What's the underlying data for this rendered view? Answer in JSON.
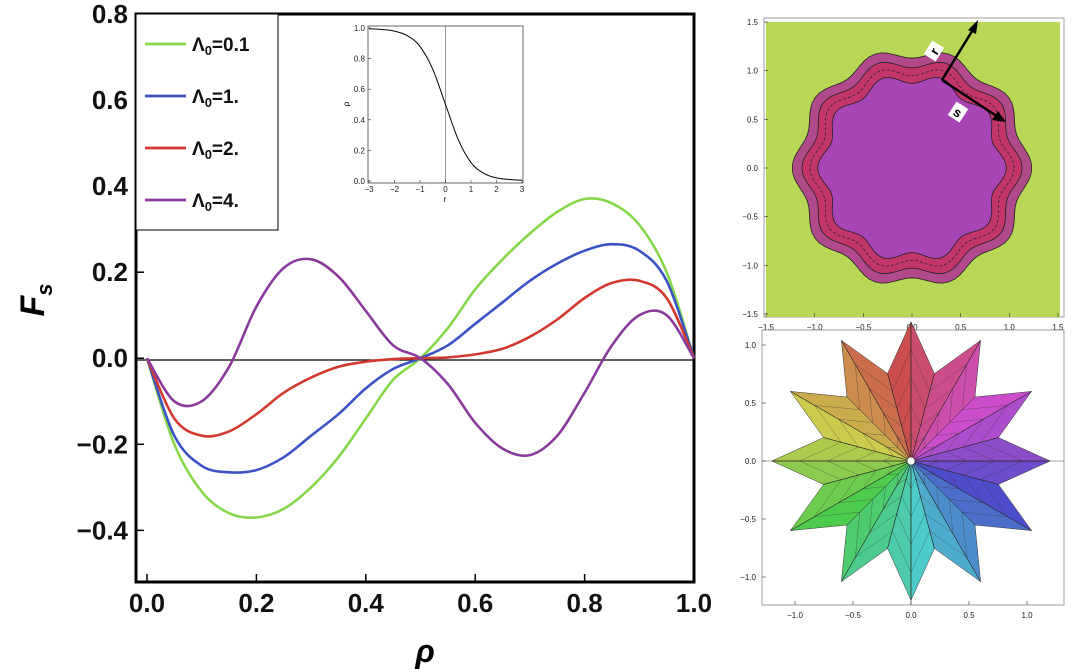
{
  "chart_data": [
    {
      "type": "line",
      "title": "",
      "xlabel": "ρ",
      "ylabel": "F",
      "ylabel_sub": "s",
      "xlim": [
        0.0,
        1.0
      ],
      "ylim": [
        -0.52,
        0.8
      ],
      "x_ticks": [
        "0.0",
        "0.2",
        "0.4",
        "0.6",
        "0.8",
        "1.0"
      ],
      "y_ticks": [
        "0.8",
        "0.6",
        "0.4",
        "0.2",
        "0.0",
        "−0.2",
        "−0.4"
      ],
      "legend_position": "top-left",
      "x": [
        0.0,
        0.05,
        0.1,
        0.15,
        0.2,
        0.25,
        0.3,
        0.35,
        0.4,
        0.45,
        0.5,
        0.55,
        0.6,
        0.65,
        0.7,
        0.75,
        0.8,
        0.85,
        0.9,
        0.95,
        1.0
      ],
      "series": [
        {
          "name": "Λ₀=0.1",
          "label_main": "Λ",
          "label_sub": "0",
          "label_rest": "=0.1",
          "color": "#86d84a",
          "values": [
            0.0,
            -0.2,
            -0.31,
            -0.36,
            -0.37,
            -0.35,
            -0.3,
            -0.23,
            -0.14,
            -0.05,
            0.0,
            0.07,
            0.16,
            0.23,
            0.29,
            0.34,
            0.37,
            0.36,
            0.31,
            0.2,
            0.0
          ]
        },
        {
          "name": "Λ₀=1.",
          "label_main": "Λ",
          "label_sub": "0",
          "label_rest": "=1.",
          "color": "#3b53c4",
          "values": [
            0.0,
            -0.18,
            -0.25,
            -0.265,
            -0.26,
            -0.23,
            -0.18,
            -0.13,
            -0.07,
            -0.025,
            0.0,
            0.03,
            0.08,
            0.13,
            0.18,
            0.22,
            0.25,
            0.265,
            0.25,
            0.18,
            0.0
          ]
        },
        {
          "name": "Λ₀=2.",
          "label_main": "Λ",
          "label_sub": "0",
          "label_rest": "=2.",
          "color": "#d23a2f",
          "values": [
            0.0,
            -0.14,
            -0.18,
            -0.17,
            -0.13,
            -0.08,
            -0.045,
            -0.02,
            -0.008,
            -0.002,
            0.0,
            0.002,
            0.009,
            0.022,
            0.05,
            0.09,
            0.14,
            0.175,
            0.18,
            0.14,
            0.0
          ]
        },
        {
          "name": "Λ₀=4.",
          "label_main": "Λ",
          "label_sub": "0",
          "label_rest": "=4.",
          "color": "#8a3a9c",
          "values": [
            0.0,
            -0.1,
            -0.1,
            -0.02,
            0.12,
            0.21,
            0.23,
            0.19,
            0.11,
            0.03,
            0.0,
            -0.06,
            -0.15,
            -0.21,
            -0.225,
            -0.18,
            -0.08,
            0.03,
            0.1,
            0.1,
            0.0
          ]
        }
      ]
    },
    {
      "type": "line",
      "title": "",
      "xlabel": "r",
      "ylabel": "ρ",
      "xlim": [
        -3,
        3
      ],
      "ylim": [
        0.0,
        1.0
      ],
      "x_ticks": [
        "−3",
        "−2",
        "−1",
        "0",
        "1",
        "2",
        "3"
      ],
      "y_ticks": [
        "1.0",
        "0.8",
        "0.6",
        "0.4",
        "0.2",
        "0.0"
      ],
      "x": [
        -3,
        -2.5,
        -2,
        -1.5,
        -1,
        -0.5,
        0,
        0.5,
        1,
        1.5,
        2,
        2.5,
        3
      ],
      "series": [
        {
          "values": [
            0.995,
            0.99,
            0.98,
            0.95,
            0.88,
            0.73,
            0.5,
            0.27,
            0.12,
            0.05,
            0.02,
            0.01,
            0.005
          ]
        }
      ]
    },
    {
      "type": "heatmap",
      "title": "",
      "xlim": [
        -1.5,
        1.5
      ],
      "ylim": [
        -1.5,
        1.5
      ],
      "x_ticks": [
        "−1.5",
        "−1.0",
        "−0.5",
        "0.0",
        "0.5",
        "1.0",
        "1.5"
      ],
      "y_ticks": [
        "1.5",
        "1.0",
        "0.5",
        "0.0",
        "−0.5",
        "−1.0",
        "−1.5"
      ],
      "arrow_labels": [
        "r",
        "s"
      ],
      "colors": {
        "outside": "#b9d756",
        "band": "#c43a78",
        "inner": "#a845b5"
      }
    },
    {
      "type": "other",
      "title": "",
      "xlim": [
        -1.2,
        1.2
      ],
      "ylim": [
        -1.2,
        1.2
      ],
      "x_ticks": [
        "−1.0",
        "−0.5",
        "0.0",
        "0.5",
        "1.0"
      ],
      "y_ticks": [
        "1.0",
        "0.5",
        "0.0",
        "−0.5",
        "−1.0"
      ],
      "points": 12
    }
  ]
}
